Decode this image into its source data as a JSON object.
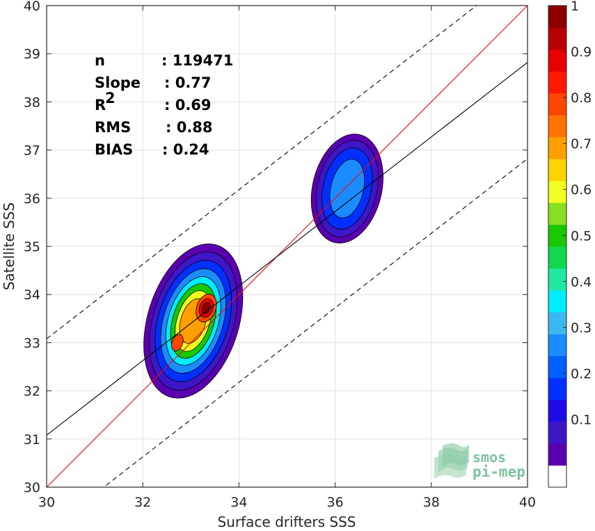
{
  "chart_data": {
    "type": "heatmap",
    "title": "",
    "xlabel": "Surface drifters SSS",
    "ylabel": "Satellite SSS",
    "xlim": [
      30,
      40
    ],
    "ylim": [
      30,
      40
    ],
    "xticks": [
      "30",
      "32",
      "34",
      "36",
      "38",
      "40"
    ],
    "yticks": [
      "30",
      "31",
      "32",
      "33",
      "34",
      "35",
      "36",
      "37",
      "38",
      "39",
      "40"
    ],
    "grid": true,
    "stats": [
      {
        "label": "n",
        "value": ": 119471"
      },
      {
        "label": "Slope",
        "value": ": 0.77"
      },
      {
        "label": "R",
        "sup": "2",
        "value": ": 0.69"
      },
      {
        "label": "RMS",
        "value": ": 0.88"
      },
      {
        "label": "BIAS",
        "value": ": 0.24"
      }
    ],
    "lines": [
      {
        "role": "identity",
        "color": "#ff0000",
        "style": "solid",
        "points": [
          [
            30,
            30
          ],
          [
            40,
            40
          ]
        ]
      },
      {
        "role": "regression",
        "color": "#000000",
        "style": "solid",
        "points": [
          [
            30,
            31.08
          ],
          [
            40,
            38.82
          ]
        ]
      },
      {
        "role": "upper-bound",
        "color": "#000000",
        "style": "dashed",
        "points": [
          [
            30,
            33.08
          ],
          [
            40,
            40.82
          ]
        ]
      },
      {
        "role": "lower-bound",
        "color": "#000000",
        "style": "dashed",
        "points": [
          [
            30,
            29.08
          ],
          [
            40,
            36.82
          ]
        ]
      }
    ],
    "clusters": [
      {
        "center": [
          33.05,
          33.45
        ],
        "contour_levels": [
          {
            "level": 0.05,
            "rx": 0.95,
            "ry": 1.65,
            "tilt": 62
          },
          {
            "level": 0.1,
            "rx": 0.84,
            "ry": 1.48,
            "tilt": 62
          },
          {
            "level": 0.2,
            "rx": 0.73,
            "ry": 1.3,
            "tilt": 62
          },
          {
            "level": 0.3,
            "rx": 0.62,
            "ry": 1.12,
            "tilt": 62
          },
          {
            "level": 0.4,
            "rx": 0.52,
            "ry": 0.95,
            "tilt": 62
          },
          {
            "level": 0.5,
            "rx": 0.43,
            "ry": 0.8,
            "tilt": 62
          },
          {
            "level": 0.6,
            "rx": 0.34,
            "ry": 0.65,
            "tilt": 62
          },
          {
            "level": 0.7,
            "rx": 0.26,
            "ry": 0.48,
            "tilt": 62
          }
        ],
        "peaks": [
          {
            "x": 33.32,
            "y": 33.72,
            "levels": [
              {
                "level": 0.8,
                "rx": 0.2,
                "ry": 0.3
              },
              {
                "level": 0.9,
                "rx": 0.14,
                "ry": 0.2
              },
              {
                "level": 1.0,
                "rx": 0.08,
                "ry": 0.12
              }
            ]
          },
          {
            "x": 32.72,
            "y": 33.0,
            "levels": [
              {
                "level": 0.8,
                "rx": 0.11,
                "ry": 0.18
              }
            ]
          }
        ]
      },
      {
        "center": [
          36.25,
          36.2
        ],
        "contour_levels": [
          {
            "level": 0.05,
            "rx": 0.72,
            "ry": 1.15,
            "tilt": 58
          },
          {
            "level": 0.1,
            "rx": 0.62,
            "ry": 1.02,
            "tilt": 58
          },
          {
            "level": 0.2,
            "rx": 0.5,
            "ry": 0.86,
            "tilt": 58
          },
          {
            "level": 0.3,
            "rx": 0.34,
            "ry": 0.62,
            "tilt": 58
          }
        ],
        "peaks": []
      }
    ],
    "colorbar": {
      "ticks": [
        "0.1",
        "0.2",
        "0.3",
        "0.4",
        "0.5",
        "0.6",
        "0.7",
        "0.8",
        "0.9",
        "1"
      ],
      "min": 0,
      "max": 1,
      "colors": [
        "#ffffff",
        "#5a00b0",
        "#3d16c8",
        "#1e0ae8",
        "#0030ff",
        "#0060ff",
        "#1a8cff",
        "#3cb8f0",
        "#00ecff",
        "#20e8a0",
        "#10d850",
        "#18c800",
        "#88e020",
        "#f0ff20",
        "#ffd400",
        "#ffa000",
        "#ff7400",
        "#ff4600",
        "#ff1800",
        "#e80000",
        "#b80000",
        "#8c0000"
      ]
    }
  },
  "logo": {
    "line1": "smos",
    "line2": "pi-mep"
  }
}
